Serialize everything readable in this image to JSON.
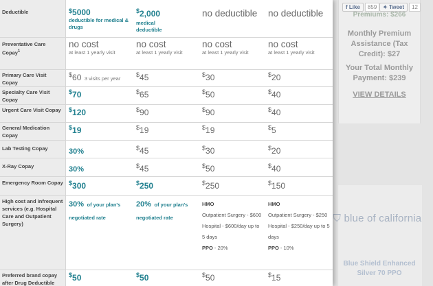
{
  "social": {
    "like_label": "Like",
    "like_count": "859",
    "tweet_label": "Tweet",
    "tweet_count": "12"
  },
  "plan_card": {
    "premiums_text": "Premiums: $266",
    "assistance_text": "Monthly Premium Assistance (Tax Credit): $27",
    "total_text": "Your Total Monthly Payment: $239",
    "view_details": "VIEW DETAILS",
    "logo_text": "blue of california",
    "plan_name": "Blue Shield Enhanced Silver 70 PPO"
  },
  "rows": {
    "deductible": {
      "label": "Deductible",
      "c1_value": "5000",
      "c1_note": "deductible for medical & drugs",
      "c2_value": "2,000",
      "c2_note": "medical deductible",
      "c3_value": "no deductible",
      "c4_value": "no deductible"
    },
    "preventative": {
      "label": "Preventative Care Copay",
      "label_sup": "1",
      "c1_value": "no cost",
      "c1_note": "at least 1 yearly visit",
      "c2_value": "no cost",
      "c2_note": "at least 1 yearly visit",
      "c3_value": "no cost",
      "c3_note": "at least 1 yearly visit",
      "c4_value": "no cost",
      "c4_note": "at least 1 yearly visit"
    },
    "primary": {
      "label": "Primary Care Visit Copay",
      "c1_value": "60",
      "c1_note": "3 visits per year",
      "c2_value": "45",
      "c3_value": "30",
      "c4_value": "20"
    },
    "specialty": {
      "label": "Specialty Care Visit Copay",
      "c1_value": "70",
      "c2_value": "65",
      "c3_value": "50",
      "c4_value": "40"
    },
    "urgent": {
      "label": "Urgent Care Visit Copay",
      "c1_value": "120",
      "c2_value": "90",
      "c3_value": "90",
      "c4_value": "40"
    },
    "general_med": {
      "label": "General Medication Copay",
      "c1_value": "19",
      "c2_value": "19",
      "c3_value": "19",
      "c4_value": "5"
    },
    "lab": {
      "label": "Lab Testing Copay",
      "c1_value": "30%",
      "c2_value": "45",
      "c3_value": "30",
      "c4_value": "20"
    },
    "xray": {
      "label": "X-Ray Copay",
      "c1_value": "30%",
      "c2_value": "45",
      "c3_value": "50",
      "c4_value": "40"
    },
    "emergency": {
      "label": "Emergency Room Copay",
      "c1_value": "300",
      "c2_value": "250",
      "c3_value": "250",
      "c4_value": "150"
    },
    "high_cost": {
      "label": "High cost and infrequent services (e.g. Hospital Care and Outpatient Surgery)",
      "c1_value": "30%",
      "c1_note": "of your plan's negotiated rate",
      "c2_value": "20%",
      "c2_note": "of your plan's negotiated rate",
      "c3_type": "HMO",
      "c3_outpatient": "Outpatient Surgery - $600",
      "c3_hospital": "Hospital - $600/day up to 5 days",
      "c3_ppo_label": "PPO",
      "c3_ppo_value": " - 20%",
      "c4_type": "HMO",
      "c4_outpatient": "Outpatient Surgery - $250",
      "c4_hospital": "Hospital - $250/day up to 5 days",
      "c4_ppo_label": "PPO",
      "c4_ppo_value": " - 10%"
    },
    "preferred": {
      "label": "Preferred brand copay after Drug Deductible",
      "c1_value": "50",
      "c2_value": "50",
      "c3_value": "50",
      "c4_value": "15"
    }
  },
  "currency_symbol": "$",
  "colors": {
    "accent_teal": "#21808f",
    "label_bg": "#ececec"
  }
}
